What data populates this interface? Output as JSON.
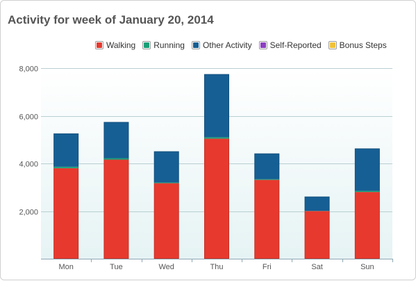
{
  "title": "Activity for week of January 20, 2014",
  "colors": {
    "walking": "#e8392e",
    "running": "#1a9e77",
    "other": "#165f94",
    "self_reported": "#8e3fc4",
    "bonus": "#efc23a"
  },
  "chart_data": {
    "type": "bar",
    "stacked": true,
    "title": "Activity for week of January 20, 2014",
    "xlabel": "",
    "ylabel": "",
    "categories": [
      "Mon",
      "Tue",
      "Wed",
      "Thu",
      "Fri",
      "Sat",
      "Sun"
    ],
    "ylim": [
      0,
      8000
    ],
    "yticks": [
      2000,
      4000,
      6000,
      8000
    ],
    "ytick_labels": [
      "2,000",
      "4,000",
      "6,000",
      "8,000"
    ],
    "grid": true,
    "legend_position": "top-right",
    "series": [
      {
        "name": "Walking",
        "color_key": "walking",
        "values": [
          3800,
          4160,
          3170,
          5040,
          3310,
          2000,
          2800
        ]
      },
      {
        "name": "Running",
        "color_key": "running",
        "values": [
          60,
          60,
          30,
          60,
          30,
          10,
          50
        ]
      },
      {
        "name": "Other Activity",
        "color_key": "other",
        "values": [
          1400,
          1520,
          1310,
          2650,
          1080,
          600,
          1780
        ]
      },
      {
        "name": "Self-Reported",
        "color_key": "self_reported",
        "values": [
          0,
          0,
          0,
          0,
          0,
          0,
          0
        ]
      },
      {
        "name": "Bonus Steps",
        "color_key": "bonus",
        "values": [
          0,
          0,
          0,
          0,
          0,
          0,
          0
        ]
      }
    ]
  }
}
